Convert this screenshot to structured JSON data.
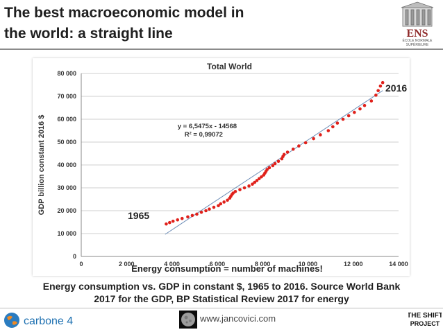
{
  "slide": {
    "title": "The best macroeconomic model in the world: a straight line",
    "title_line1": "The best macroeconomic model in",
    "title_line2": "the world: a straight line",
    "annotation_2016": "2016",
    "annotation_1965": "1965",
    "energy_note": "Energy consumption = number of machines!",
    "caption_line1": "Energy consumption vs. GDP in constant $, 1965 to 2016. Source World Bank",
    "caption_line2": "2017 for the GDP, BP Statistical Review 2017 for energy",
    "website": "www.jancovici.com"
  },
  "logos": {
    "ens_text": "ENS",
    "ens_subtitle_1": "ÉCOLE NORMALE",
    "ens_subtitle_2": "SUPÉRIEURE",
    "carbone_text": "carbone 4",
    "shift_line1": "THE SHIFT",
    "shift_line2": "PROJECT"
  },
  "colors": {
    "points": "#e0211b",
    "trend": "#6f8fb8",
    "accent_carbone": "#1c6fb0",
    "ens_red": "#8f2a2a"
  },
  "chart_data": {
    "type": "scatter",
    "title": "Total World",
    "xlabel": "",
    "ylabel": "GDP billion constant 2016 $",
    "xlim": [
      0,
      14000
    ],
    "ylim": [
      0,
      80000
    ],
    "x_ticks": [
      0,
      2000,
      4000,
      6000,
      8000,
      10000,
      12000,
      14000
    ],
    "x_tick_labels": [
      "0",
      "2 000",
      "4 000",
      "6 000",
      "8 000",
      "10 000",
      "12 000",
      "14 000"
    ],
    "y_ticks": [
      0,
      10000,
      20000,
      30000,
      40000,
      50000,
      60000,
      70000,
      80000
    ],
    "y_tick_labels": [
      "0",
      "10 000",
      "20 000",
      "30 000",
      "40 000",
      "50 000",
      "60 000",
      "70 000",
      "80 000"
    ],
    "equation": "y = 6,5475x - 14568",
    "r_squared": "R² = 0,99072",
    "trendline": {
      "slope": 6.5475,
      "intercept": -14568,
      "x_range": [
        3700,
        13300
      ]
    },
    "grid": true,
    "series": [
      {
        "points": [
          [
            3750,
            14200
          ],
          [
            3900,
            14800
          ],
          [
            4050,
            15400
          ],
          [
            4250,
            16000
          ],
          [
            4450,
            16600
          ],
          [
            4700,
            17300
          ],
          [
            4900,
            17900
          ],
          [
            5100,
            18500
          ],
          [
            5300,
            19300
          ],
          [
            5500,
            20000
          ],
          [
            5650,
            20700
          ],
          [
            5850,
            21500
          ],
          [
            6050,
            22200
          ],
          [
            6150,
            23000
          ],
          [
            6300,
            23800
          ],
          [
            6450,
            24600
          ],
          [
            6550,
            25500
          ],
          [
            6600,
            26300
          ],
          [
            6650,
            27100
          ],
          [
            6700,
            27700
          ],
          [
            6800,
            28400
          ],
          [
            7000,
            29200
          ],
          [
            7200,
            30000
          ],
          [
            7400,
            30800
          ],
          [
            7550,
            31600
          ],
          [
            7650,
            32400
          ],
          [
            7750,
            33200
          ],
          [
            7850,
            34000
          ],
          [
            7950,
            34800
          ],
          [
            8050,
            35600
          ],
          [
            8100,
            36400
          ],
          [
            8150,
            37200
          ],
          [
            8200,
            38000
          ],
          [
            8300,
            38800
          ],
          [
            8450,
            39700
          ],
          [
            8550,
            40600
          ],
          [
            8700,
            41600
          ],
          [
            8850,
            42700
          ],
          [
            8900,
            43700
          ],
          [
            8950,
            44600
          ],
          [
            9100,
            45600
          ],
          [
            9350,
            46900
          ],
          [
            9600,
            48300
          ],
          [
            9900,
            49700
          ],
          [
            10250,
            51500
          ],
          [
            10550,
            53200
          ],
          [
            10900,
            55000
          ],
          [
            11100,
            56700
          ],
          [
            11300,
            58300
          ],
          [
            11550,
            60000
          ],
          [
            11800,
            61500
          ],
          [
            12050,
            63000
          ],
          [
            12300,
            64500
          ],
          [
            12500,
            66000
          ],
          [
            12800,
            68000
          ],
          [
            13000,
            70500
          ],
          [
            13100,
            72500
          ],
          [
            13200,
            74500
          ],
          [
            13300,
            76000
          ]
        ]
      }
    ]
  }
}
